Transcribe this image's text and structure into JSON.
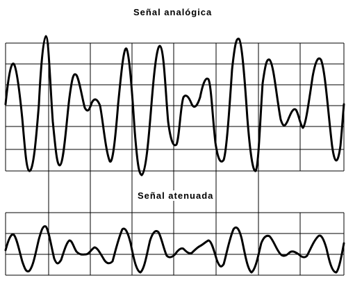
{
  "titles": {
    "analog": "Señal analógica",
    "attenuated": "Señal atenuada"
  },
  "colors": {
    "background": "#ffffff",
    "lines": "#000000"
  }
}
